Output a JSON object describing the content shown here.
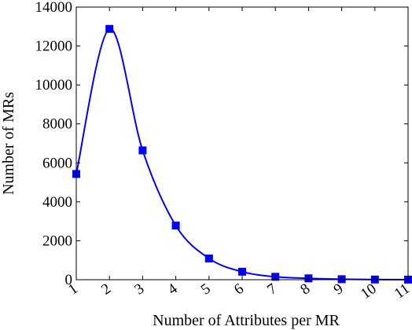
{
  "chart_data": {
    "type": "line",
    "title": "",
    "xlabel": "Number of Attributes per MR",
    "ylabel": "Number of MRs",
    "x": [
      1,
      2,
      3,
      4,
      5,
      6,
      7,
      8,
      9,
      10,
      11
    ],
    "x_tick_labels": [
      "1",
      "2",
      "3",
      "4",
      "5",
      "6",
      "7",
      "8",
      "9",
      "10",
      "11"
    ],
    "xlim": [
      1,
      11
    ],
    "y_ticks": [
      0,
      2000,
      4000,
      6000,
      8000,
      10000,
      12000,
      14000
    ],
    "y_tick_labels": [
      "0",
      "2000",
      "4000",
      "6000",
      "8000",
      "10000",
      "12000",
      "14000"
    ],
    "ylim": [
      0,
      14000
    ],
    "grid": false,
    "series": [
      {
        "name": "",
        "color": "#0000ff",
        "marker": "square",
        "smooth": true,
        "values": [
          5430,
          12880,
          6640,
          2780,
          1090,
          410,
          150,
          70,
          25,
          10,
          5
        ]
      }
    ]
  }
}
